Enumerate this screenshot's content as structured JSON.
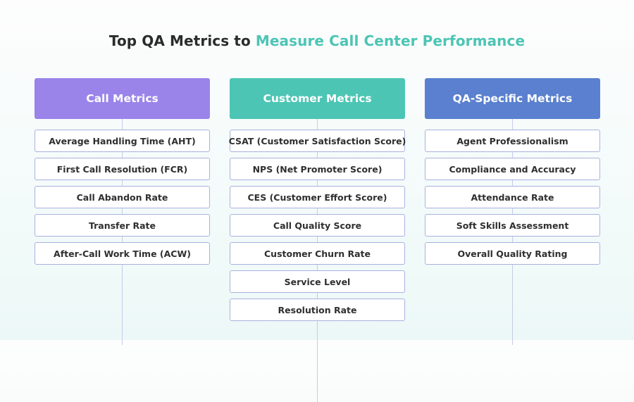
{
  "title": {
    "prefix": "Top QA Metrics to ",
    "highlight": "Measure Call Center Performance"
  },
  "colors": {
    "title_accent": "#4cc5b4",
    "call_metrics_header": "#9a84ea",
    "customer_metrics_header": "#4cc5b4",
    "qa_specific_metrics_header": "#5a80cf",
    "box_border": "#a9b1e0"
  },
  "columns": [
    {
      "header": "Call Metrics",
      "items": [
        "Average Handling Time (AHT)",
        "First Call Resolution (FCR)",
        "Call Abandon Rate",
        "Transfer Rate",
        "After-Call Work Time (ACW)"
      ]
    },
    {
      "header": "Customer Metrics",
      "items": [
        "CSAT (Customer Satisfaction Score)",
        "NPS (Net Promoter Score)",
        "CES (Customer Effort Score)",
        "Call Quality Score",
        "Customer Churn Rate",
        "Service Level",
        "Resolution Rate"
      ]
    },
    {
      "header": "QA-Specific Metrics",
      "items": [
        "Agent Professionalism",
        "Compliance and Accuracy",
        "Attendance Rate",
        "Soft Skills Assessment",
        "Overall Quality Rating"
      ]
    }
  ]
}
